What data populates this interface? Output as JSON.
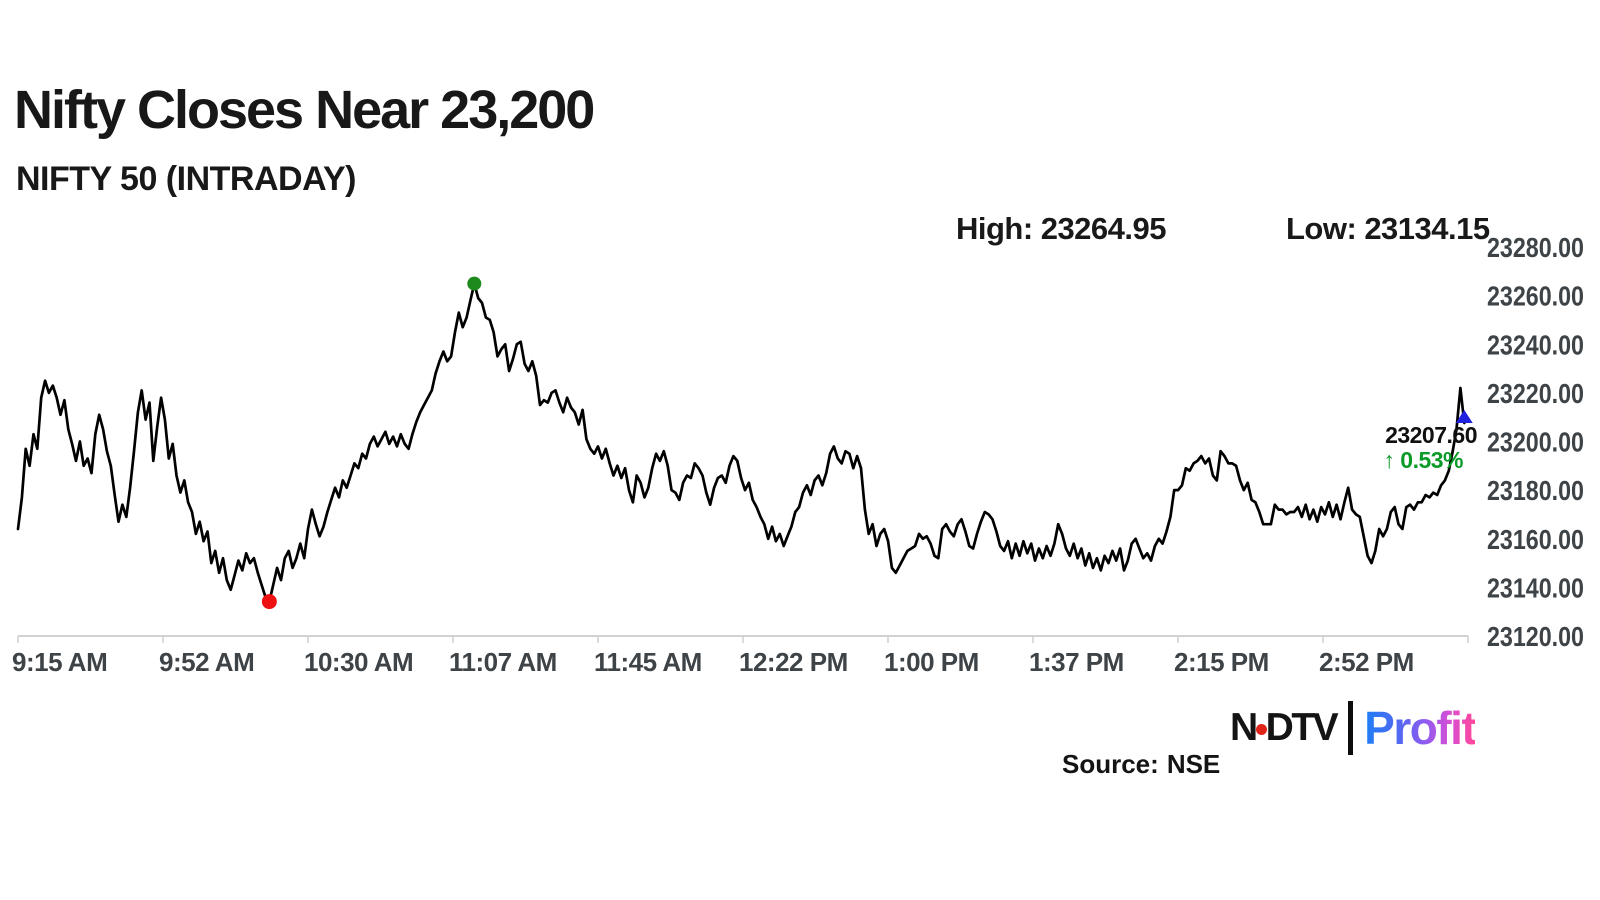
{
  "header": {
    "title": "Nifty Closes Near 23,200",
    "subtitle": "NIFTY 50 (INTRADAY)"
  },
  "stats": {
    "high_label": "High:",
    "high_value": "23264.95",
    "low_label": "Low:",
    "low_value": "23134.15"
  },
  "colors": {
    "line": "#000000",
    "axis_line": "#d2d2d2",
    "axis_text": "#3d4347",
    "high_dot": "#1e8a1e",
    "low_dot": "#ee1111",
    "close_marker": "#2021df",
    "last_price_text": "#101010",
    "change_text": "#0a9b28"
  },
  "chart_data": {
    "type": "line",
    "title": "NIFTY 50 (INTRADAY)",
    "series_name": "NIFTY 50",
    "x_start_time": "9:15 AM",
    "x_end_time": "3:30 PM",
    "interval_minutes": 1,
    "x_tick_labels": [
      "9:15 AM",
      "9:52 AM",
      "10:30 AM",
      "11:07 AM",
      "11:45 AM",
      "12:22 PM",
      "1:00 PM",
      "1:37 PM",
      "2:15 PM",
      "2:52 PM"
    ],
    "y_tick_labels": [
      "23280.00",
      "23260.00",
      "23240.00",
      "23220.00",
      "23200.00",
      "23180.00",
      "23160.00",
      "23140.00",
      "23120.00"
    ],
    "y_axis_range": [
      23120,
      23280
    ],
    "grid": false,
    "legend": false,
    "high": 23264.95,
    "low": 23134.15,
    "close": 23207.6,
    "last_price_label": "23207.60",
    "change_display": "↑ 0.53%",
    "markers": {
      "high": {
        "t": 118,
        "price": 23264.95,
        "shape": "dot"
      },
      "low": {
        "t": 65,
        "price": 23134.15,
        "shape": "dot"
      },
      "close": {
        "t": 374,
        "price": 23207.6,
        "shape": "triangle-up"
      }
    },
    "prices": [
      23164,
      23177,
      23197,
      23190,
      23203,
      23197,
      23218,
      23225,
      23220,
      23223,
      23218,
      23211,
      23217,
      23205,
      23199,
      23192,
      23200,
      23190,
      23193,
      23187,
      23203,
      23211,
      23205,
      23196,
      23190,
      23178,
      23167,
      23174,
      23169,
      23181,
      23196,
      23212,
      23221,
      23209,
      23216,
      23192,
      23206,
      23218,
      23209,
      23193,
      23199,
      23186,
      23179,
      23184,
      23175,
      23171,
      23162,
      23167,
      23159,
      23163,
      23150,
      23155,
      23146,
      23152,
      23143,
      23139,
      23145,
      23151,
      23147,
      23154,
      23150,
      23152,
      23146,
      23141,
      23136,
      23134.15,
      23141,
      23148,
      23143,
      23152,
      23155,
      23148,
      23152,
      23158,
      23152,
      23164,
      23172,
      23166,
      23161,
      23165,
      23171,
      23176,
      23181,
      23177,
      23184,
      23181,
      23186,
      23191,
      23189,
      23195,
      23193,
      23199,
      23202,
      23198,
      23201,
      23204,
      23199,
      23202,
      23198,
      23203,
      23199,
      23197,
      23203,
      23208,
      23212,
      23215,
      23218,
      23221,
      23228,
      23233,
      23237,
      23233,
      23235,
      23245,
      23253,
      23247,
      23251,
      23258,
      23264.95,
      23259,
      23257,
      23251,
      23250,
      23245,
      23235,
      23238,
      23240,
      23229,
      23234,
      23240,
      23241,
      23232,
      23229,
      23233,
      23227,
      23215,
      23217,
      23216,
      23220,
      23221,
      23216,
      23212,
      23218,
      23214,
      23212,
      23207,
      23213,
      23201,
      23197,
      23195,
      23198,
      23193,
      23197,
      23191,
      23186,
      23190,
      23185,
      23189,
      23180,
      23175,
      23186,
      23183,
      23177,
      23181,
      23189,
      23195,
      23192,
      23196,
      23190,
      23180,
      23179,
      23176,
      23183,
      23186,
      23185,
      23191,
      23189,
      23186,
      23179,
      23174,
      23181,
      23185,
      23186,
      23183,
      23190,
      23194,
      23192,
      23185,
      23180,
      23183,
      23176,
      23173,
      23169,
      23166,
      23160,
      23165,
      23159,
      23162,
      23157,
      23161,
      23165,
      23171,
      23173,
      23179,
      23182,
      23178,
      23184,
      23186,
      23182,
      23187,
      23195,
      23198,
      23193,
      23191,
      23196,
      23195,
      23189,
      23194,
      23189,
      23172,
      23162,
      23166,
      23157,
      23162,
      23164,
      23159,
      23148,
      23146,
      23149,
      23152,
      23155,
      23156,
      23157,
      23162,
      23160,
      23161,
      23158,
      23153,
      23152,
      23164,
      23166,
      23163,
      23161,
      23166,
      23168,
      23163,
      23157,
      23156,
      23162,
      23167,
      23171,
      23170,
      23168,
      23163,
      23157,
      23155,
      23159,
      23152,
      23158,
      23153,
      23159,
      23154,
      23158,
      23151,
      23156,
      23152,
      23157,
      23153,
      23158,
      23166,
      23162,
      23156,
      23153,
      23158,
      23152,
      23156,
      23149,
      23154,
      23148,
      23152,
      23147,
      23153,
      23150,
      23155,
      23151,
      23156,
      23147,
      23151,
      23158,
      23160,
      23156,
      23152,
      23154,
      23151,
      23157,
      23160,
      23158,
      23163,
      23169,
      23180,
      23180,
      23182,
      23189,
      23188,
      23191,
      23192,
      23194,
      23191,
      23193,
      23186,
      23184,
      23196,
      23194,
      23191,
      23191,
      23190,
      23184,
      23180,
      23183,
      23176,
      23175,
      23171,
      23166,
      23166,
      23166,
      23174,
      23172,
      23172,
      23170,
      23171,
      23171,
      23173,
      23169,
      23174,
      23168,
      23172,
      23167,
      23173,
      23170,
      23175,
      23169,
      23174,
      23168,
      23175,
      23181,
      23172,
      23170,
      23169,
      23161,
      23153,
      23150,
      23155,
      23164,
      23161,
      23164,
      23171,
      23173,
      23166,
      23164,
      23173,
      23174,
      23172,
      23175,
      23175,
      23178,
      23177,
      23179,
      23178,
      23182,
      23184,
      23188,
      23196,
      23205,
      23222,
      23207.6
    ]
  },
  "footer": {
    "source_label": "Source:",
    "source_value": "NSE",
    "logo": {
      "ndtv_n": "N",
      "ndtv_dtv": "DTV",
      "profit": "Profit"
    }
  }
}
